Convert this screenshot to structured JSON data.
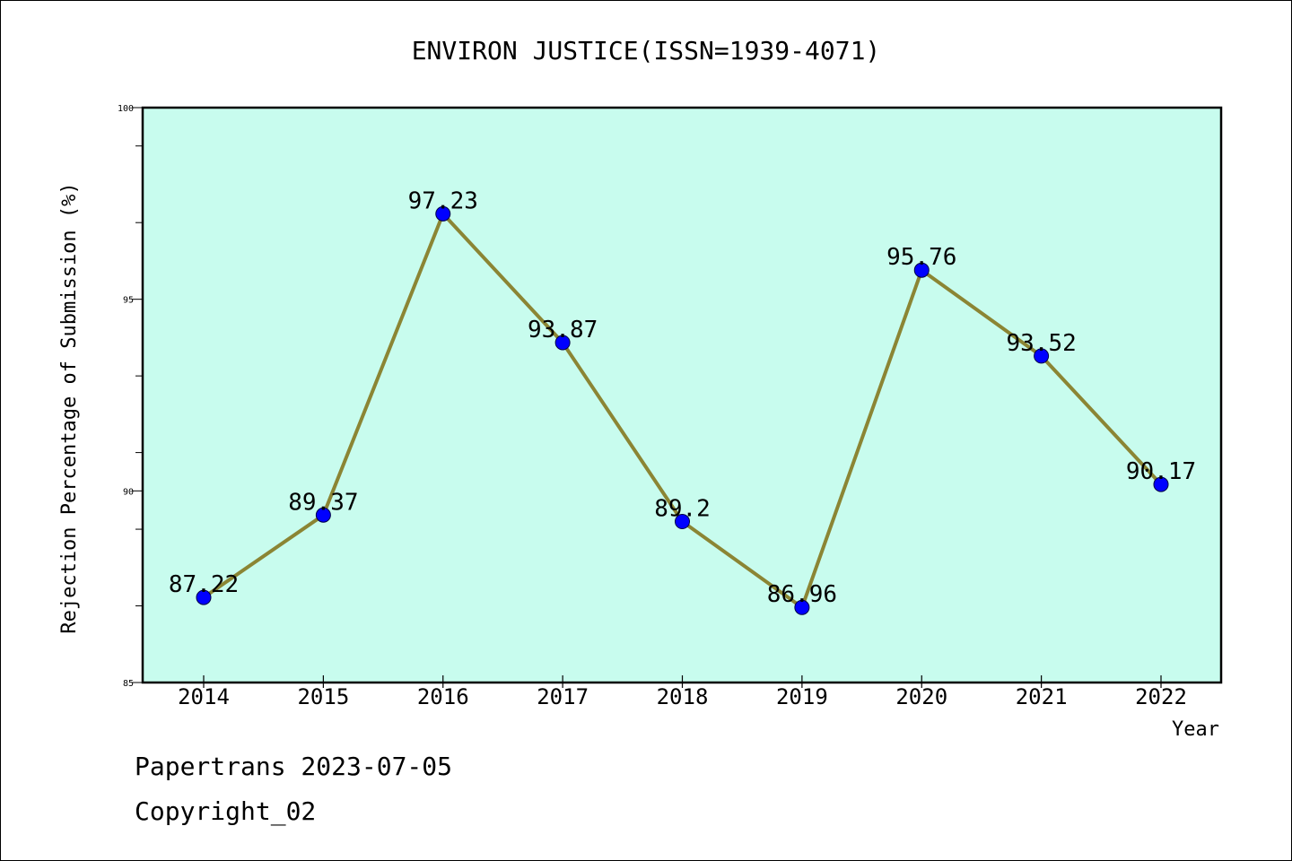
{
  "chart_data": {
    "type": "line",
    "title": "ENVIRON JUSTICE(ISSN=1939-4071)",
    "xlabel": "Year",
    "ylabel": "Rejection Percentage of Submission (%)",
    "categories": [
      "2014",
      "2015",
      "2016",
      "2017",
      "2018",
      "2019",
      "2020",
      "2021",
      "2022"
    ],
    "values": [
      87.22,
      89.37,
      97.23,
      93.87,
      89.2,
      86.96,
      95.76,
      93.52,
      90.17
    ],
    "data_labels": [
      "87.22",
      "89.37",
      "97.23",
      "93.87",
      "89.2",
      "86.96",
      "95.76",
      "93.52",
      "90.17"
    ],
    "ylim": [
      85,
      100
    ],
    "yticks": [
      85,
      90,
      95,
      100
    ],
    "grid": false,
    "colors": {
      "plot_background": "#c8fcee",
      "line": "#8b8534",
      "marker": "#0000ff"
    }
  },
  "footer": {
    "line1": "Papertrans 2023-07-05",
    "line2": "Copyright_02"
  }
}
